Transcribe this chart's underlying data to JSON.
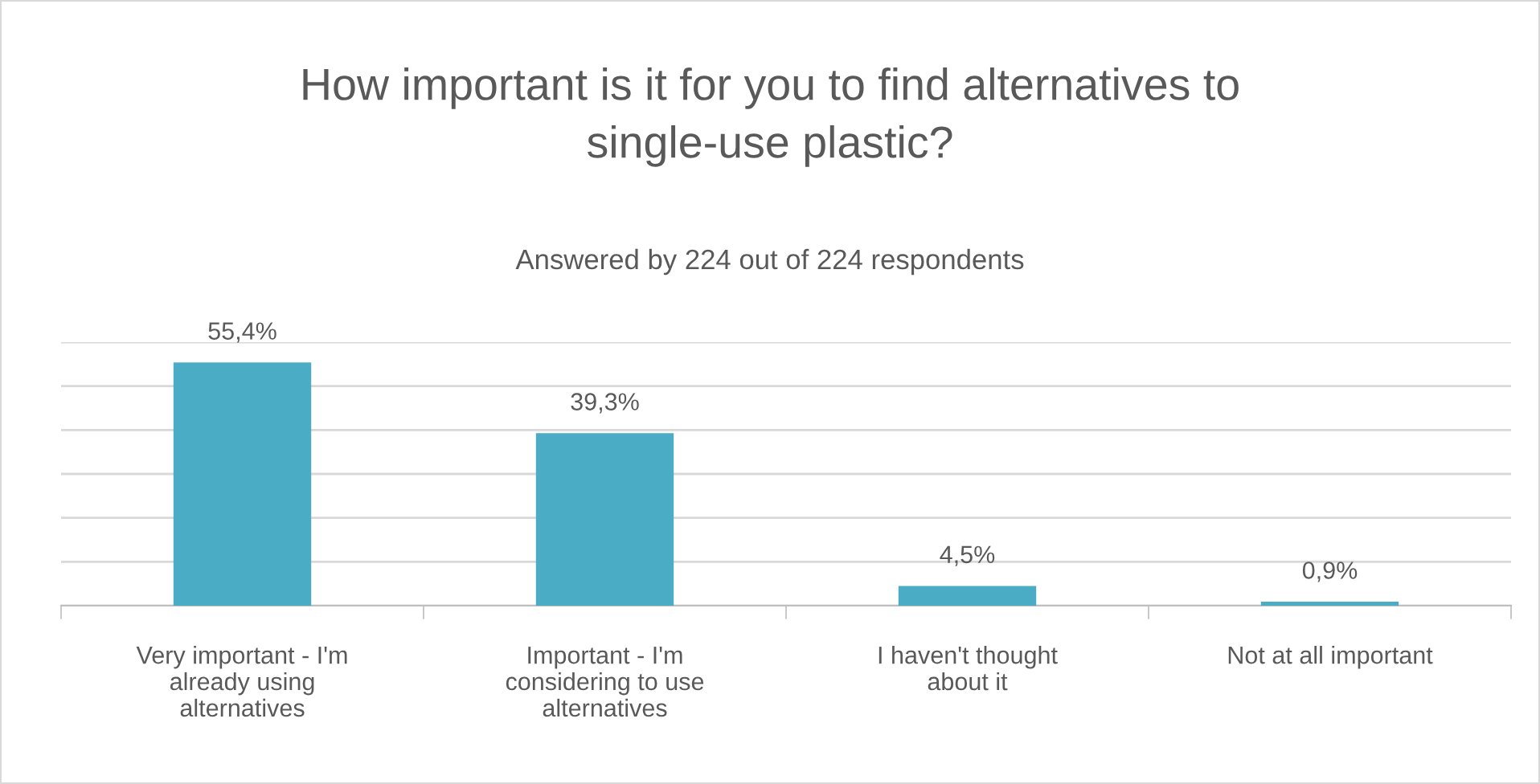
{
  "chart_data": {
    "type": "bar",
    "title": "How important is it for you to find alternatives to single-use plastic?",
    "subtitle": "Answered by 224 out of 224 respondents",
    "categories": [
      "Very important - I'm already using alternatives",
      "Important - I'm considering to use alternatives",
      "I haven't thought about it",
      "Not at all important"
    ],
    "values": [
      55.4,
      39.3,
      4.5,
      0.9
    ],
    "value_labels": [
      "55,4%",
      "39,3%",
      "4,5%",
      "0,9%"
    ],
    "color": "#4bacc6",
    "ylim": [
      0,
      60
    ],
    "yticks": [
      {
        "value": 0,
        "label": null
      },
      {
        "value": 10,
        "label": null
      },
      {
        "value": 20,
        "label": null
      },
      {
        "value": 30,
        "label": null
      },
      {
        "value": 40,
        "label": null
      },
      {
        "value": 50,
        "label": null
      },
      {
        "value": 60,
        "label": null
      }
    ],
    "grid": "y"
  }
}
